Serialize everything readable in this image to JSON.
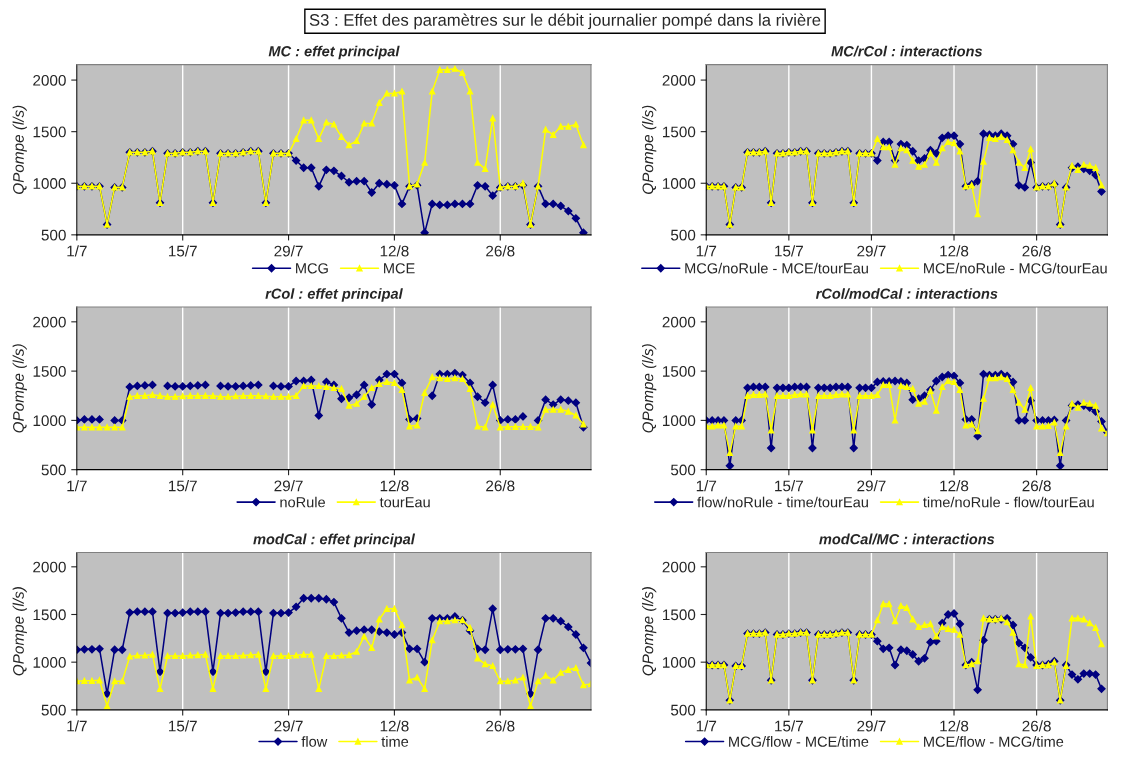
{
  "chart_data": [
    {
      "type": "line",
      "title": "MC : effet principal",
      "ylabel": "QPompe (l/s)",
      "annotations": [
        "S3 : Effet des paramètres sur le débit journalier pompé dans la rivière"
      ],
      "categories": [
        "1/7",
        null,
        null,
        null,
        null,
        null,
        null,
        null,
        null,
        null,
        null,
        null,
        null,
        null,
        "15/7",
        null,
        null,
        null,
        null,
        null,
        null,
        null,
        null,
        null,
        null,
        null,
        null,
        null,
        "29/7",
        null,
        null,
        null,
        null,
        null,
        null,
        null,
        null,
        null,
        null,
        null,
        null,
        null,
        "12/8",
        null,
        null,
        null,
        null,
        null,
        null,
        null,
        null,
        null,
        null,
        null,
        null,
        null,
        "26/8",
        null,
        null,
        null,
        null,
        null,
        null,
        null,
        null,
        null,
        null,
        null,
        null
      ],
      "ylim": [
        500,
        2150
      ],
      "yticks": [
        500,
        1000,
        1500,
        2000
      ],
      "grid": "x",
      "legend": "bottom",
      "series": [
        {
          "name": "MCG",
          "color": "#000080",
          "marker": "diamond",
          "values": [
            970,
            970,
            970,
            970,
            600,
            960,
            960,
            1300,
            1300,
            1300,
            1310,
            810,
            1290,
            1290,
            1300,
            1300,
            1310,
            1310,
            810,
            1290,
            1290,
            1290,
            1300,
            1310,
            1310,
            810,
            1290,
            1290,
            1290,
            1220,
            1150,
            1150,
            970,
            1130,
            1120,
            1070,
            1010,
            1020,
            1020,
            910,
            1000,
            990,
            980,
            800,
            970,
            980,
            520,
            800,
            790,
            790,
            800,
            800,
            800,
            980,
            970,
            880,
            960,
            970,
            970,
            980,
            600,
            970,
            800,
            800,
            780,
            730,
            660,
            520,
            null
          ]
        },
        {
          "name": "MCE",
          "color": "#ffff00",
          "marker": "triangle",
          "values": [
            970,
            970,
            970,
            970,
            600,
            960,
            960,
            1300,
            1300,
            1300,
            1310,
            810,
            1290,
            1290,
            1300,
            1300,
            1310,
            1310,
            810,
            1290,
            1290,
            1290,
            1300,
            1310,
            1310,
            810,
            1290,
            1290,
            1290,
            1430,
            1610,
            1610,
            1430,
            1590,
            1570,
            1450,
            1370,
            1410,
            1580,
            1580,
            1780,
            1870,
            1870,
            1890,
            970,
            990,
            1200,
            1890,
            2100,
            2100,
            2110,
            2070,
            1890,
            1200,
            1140,
            1630,
            960,
            970,
            970,
            1000,
            600,
            970,
            1520,
            1470,
            1550,
            1550,
            1570,
            1370,
            null
          ]
        }
      ]
    },
    {
      "type": "line",
      "title": "MC/rCol : interactions",
      "ylabel": "QPompe (l/s)",
      "categories": [
        "1/7",
        null,
        null,
        null,
        null,
        null,
        null,
        null,
        null,
        null,
        null,
        null,
        null,
        null,
        "15/7",
        null,
        null,
        null,
        null,
        null,
        null,
        null,
        null,
        null,
        null,
        null,
        null,
        null,
        "29/7",
        null,
        null,
        null,
        null,
        null,
        null,
        null,
        null,
        null,
        null,
        null,
        null,
        null,
        "12/8",
        null,
        null,
        null,
        null,
        null,
        null,
        null,
        null,
        null,
        null,
        null,
        null,
        null,
        "26/8",
        null,
        null,
        null,
        null,
        null,
        null,
        null,
        null,
        null,
        null,
        null,
        null
      ],
      "ylim": [
        500,
        2150
      ],
      "yticks": [
        500,
        1000,
        1500,
        2000
      ],
      "grid": "x",
      "legend": "bottom",
      "series": [
        {
          "name": "MCG/noRule - MCE/tourEau",
          "color": "#000080",
          "marker": "diamond",
          "values": [
            970,
            970,
            970,
            970,
            600,
            960,
            960,
            1300,
            1300,
            1300,
            1310,
            810,
            1290,
            1290,
            1300,
            1300,
            1310,
            1310,
            810,
            1290,
            1290,
            1290,
            1300,
            1310,
            1310,
            810,
            1290,
            1290,
            1290,
            1220,
            1400,
            1400,
            1220,
            1380,
            1370,
            1310,
            1220,
            1240,
            1320,
            1290,
            1440,
            1460,
            1460,
            1380,
            970,
            990,
            1020,
            1480,
            1470,
            1460,
            1480,
            1460,
            1380,
            980,
            960,
            1200,
            960,
            970,
            970,
            990,
            600,
            960,
            1150,
            1160,
            1140,
            1120,
            1080,
            920,
            null
          ]
        },
        {
          "name": "MCE/noRule - MCG/tourEau",
          "color": "#ffff00",
          "marker": "triangle",
          "values": [
            970,
            970,
            970,
            970,
            600,
            960,
            960,
            1300,
            1300,
            1300,
            1310,
            810,
            1290,
            1290,
            1300,
            1300,
            1310,
            1310,
            810,
            1290,
            1290,
            1290,
            1300,
            1310,
            1310,
            810,
            1290,
            1290,
            1290,
            1430,
            1350,
            1350,
            1180,
            1340,
            1320,
            1220,
            1160,
            1180,
            1290,
            1200,
            1340,
            1400,
            1390,
            1310,
            970,
            980,
            700,
            1210,
            1440,
            1430,
            1450,
            1420,
            1320,
            1200,
            1150,
            1330,
            960,
            970,
            970,
            1000,
            600,
            960,
            1170,
            1130,
            1180,
            1170,
            1150,
            980,
            null
          ]
        }
      ]
    },
    {
      "type": "line",
      "title": "rCol : effet principal",
      "ylabel": "QPompe (l/s)",
      "categories": [
        "1/7",
        null,
        null,
        null,
        null,
        null,
        null,
        null,
        null,
        null,
        null,
        null,
        null,
        null,
        "15/7",
        null,
        null,
        null,
        null,
        null,
        null,
        null,
        null,
        null,
        null,
        null,
        null,
        null,
        "29/7",
        null,
        null,
        null,
        null,
        null,
        null,
        null,
        null,
        null,
        null,
        null,
        null,
        null,
        "12/8",
        null,
        null,
        null,
        null,
        null,
        null,
        null,
        null,
        null,
        null,
        null,
        null,
        null,
        "26/8",
        null,
        null,
        null,
        null,
        null,
        null,
        null,
        null,
        null,
        null,
        null,
        null
      ],
      "ylim": [
        500,
        2150
      ],
      "yticks": [
        500,
        1000,
        1500,
        2000
      ],
      "grid": "x",
      "legend": "bottom",
      "series": [
        {
          "name": "noRule",
          "color": "#000080",
          "marker": "diamond",
          "values": [
            1000,
            1010,
            1010,
            1010,
            null,
            1000,
            1000,
            1340,
            1350,
            1355,
            1360,
            null,
            1350,
            1345,
            1345,
            1350,
            1355,
            1360,
            null,
            1350,
            1345,
            1345,
            1350,
            1355,
            1360,
            null,
            1350,
            1345,
            1345,
            1400,
            1400,
            1410,
            1050,
            1390,
            1360,
            1220,
            1230,
            1260,
            1360,
            1160,
            1410,
            1470,
            1470,
            1380,
            1010,
            1020,
            null,
            1250,
            1470,
            1470,
            1480,
            1460,
            1380,
            1240,
            1180,
            1360,
            1000,
            1010,
            1010,
            1040,
            null,
            1000,
            1210,
            1160,
            1210,
            1200,
            1180,
            930,
            null
          ]
        },
        {
          "name": "tourEau",
          "color": "#ffff00",
          "marker": "triangle",
          "values": [
            930,
            930,
            930,
            930,
            930,
            930,
            930,
            1240,
            1250,
            1250,
            1260,
            1250,
            1240,
            1240,
            1245,
            1250,
            1250,
            1250,
            1250,
            1240,
            1240,
            1245,
            1250,
            1250,
            1250,
            1245,
            1240,
            1240,
            1240,
            1250,
            1350,
            1350,
            1350,
            1340,
            1330,
            1320,
            1150,
            1170,
            1240,
            1330,
            1370,
            1390,
            1380,
            1310,
            940,
            950,
            1280,
            1440,
            1430,
            1420,
            1430,
            1420,
            1320,
            940,
            930,
            1160,
            930,
            935,
            935,
            935,
            935,
            930,
            1110,
            1110,
            1110,
            1090,
            1050,
            960,
            null
          ]
        }
      ]
    },
    {
      "type": "line",
      "title": "rCol/modCal : interactions",
      "ylabel": "QPompe (l/s)",
      "categories": [
        "1/7",
        null,
        null,
        null,
        null,
        null,
        null,
        null,
        null,
        null,
        null,
        null,
        null,
        null,
        "15/7",
        null,
        null,
        null,
        null,
        null,
        null,
        null,
        null,
        null,
        null,
        null,
        null,
        null,
        "29/7",
        null,
        null,
        null,
        null,
        null,
        null,
        null,
        null,
        null,
        null,
        null,
        null,
        null,
        "12/8",
        null,
        null,
        null,
        null,
        null,
        null,
        null,
        null,
        null,
        null,
        null,
        null,
        null,
        "26/8",
        null,
        null,
        null,
        null,
        null,
        null,
        null,
        null,
        null,
        null,
        null,
        null
      ],
      "ylim": [
        500,
        2150
      ],
      "yticks": [
        500,
        1000,
        1500,
        2000
      ],
      "grid": "x",
      "legend": "bottom",
      "series": [
        {
          "name": "flow/noRule - time/tourEau",
          "color": "#000080",
          "marker": "diamond",
          "values": [
            1000,
            1000,
            1000,
            1000,
            540,
            1000,
            1000,
            1330,
            1340,
            1340,
            1340,
            720,
            1330,
            1330,
            1330,
            1340,
            1340,
            1340,
            720,
            1330,
            1330,
            1330,
            1340,
            1340,
            1340,
            720,
            1330,
            1330,
            1330,
            1390,
            1395,
            1395,
            1400,
            1395,
            1380,
            1210,
            1220,
            1250,
            1310,
            1400,
            1440,
            1460,
            1450,
            1380,
            1010,
            1010,
            840,
            1470,
            1460,
            1460,
            1470,
            1450,
            1390,
            1000,
            1000,
            1200,
            1000,
            1000,
            1000,
            1005,
            540,
            1000,
            1150,
            1160,
            1150,
            1130,
            1090,
            990,
            880
          ]
        },
        {
          "name": "time/noRule - flow/tourEau",
          "color": "#ffff00",
          "marker": "triangle",
          "values": [
            940,
            940,
            950,
            950,
            670,
            940,
            940,
            1250,
            1260,
            1260,
            1265,
            900,
            1250,
            1250,
            1250,
            1260,
            1265,
            1265,
            900,
            1250,
            1250,
            1250,
            1260,
            1265,
            1265,
            900,
            1250,
            1250,
            1250,
            1260,
            1360,
            1360,
            1000,
            1350,
            1340,
            1320,
            1170,
            1190,
            1300,
            1100,
            1340,
            1400,
            1390,
            1310,
            950,
            960,
            890,
            1220,
            1430,
            1430,
            1440,
            1420,
            1310,
            1180,
            1110,
            1330,
            940,
            940,
            945,
            980,
            670,
            940,
            1170,
            1130,
            1180,
            1170,
            1150,
            920,
            870
          ]
        }
      ]
    },
    {
      "type": "line",
      "title": "modCal : effet principal",
      "ylabel": "QPompe (l/s)",
      "categories": [
        "1/7",
        null,
        null,
        null,
        null,
        null,
        null,
        null,
        null,
        null,
        null,
        null,
        null,
        null,
        "15/7",
        null,
        null,
        null,
        null,
        null,
        null,
        null,
        null,
        null,
        null,
        null,
        null,
        null,
        "29/7",
        null,
        null,
        null,
        null,
        null,
        null,
        null,
        null,
        null,
        null,
        null,
        null,
        null,
        "12/8",
        null,
        null,
        null,
        null,
        null,
        null,
        null,
        null,
        null,
        null,
        null,
        null,
        null,
        "26/8",
        null,
        null,
        null,
        null,
        null,
        null,
        null,
        null,
        null,
        null,
        null,
        null
      ],
      "ylim": [
        500,
        2150
      ],
      "yticks": [
        500,
        1000,
        1500,
        2000
      ],
      "grid": "x",
      "legend": "bottom",
      "series": [
        {
          "name": "flow",
          "color": "#000080",
          "marker": "diamond",
          "values": [
            1130,
            1135,
            1135,
            1140,
            670,
            1130,
            1130,
            1520,
            1530,
            1530,
            1530,
            900,
            1515,
            1515,
            1520,
            1530,
            1530,
            1530,
            900,
            1515,
            1515,
            1520,
            1530,
            1530,
            1530,
            900,
            1515,
            1515,
            1520,
            1580,
            1670,
            1670,
            1670,
            1660,
            1630,
            1460,
            1310,
            1330,
            1340,
            1340,
            1320,
            1310,
            1290,
            1310,
            1140,
            1140,
            1000,
            1460,
            1460,
            1460,
            1480,
            1440,
            1330,
            1140,
            1130,
            1560,
            1130,
            1135,
            1135,
            1140,
            670,
            1130,
            1460,
            1460,
            1430,
            1370,
            1290,
            1150,
            990
          ]
        },
        {
          "name": "time",
          "color": "#ffff00",
          "marker": "triangle",
          "values": [
            800,
            805,
            805,
            810,
            540,
            800,
            800,
            1060,
            1070,
            1070,
            1080,
            720,
            1065,
            1065,
            1065,
            1070,
            1075,
            1080,
            720,
            1065,
            1065,
            1065,
            1070,
            1075,
            1080,
            720,
            1065,
            1065,
            1065,
            1070,
            1080,
            1080,
            720,
            1065,
            1065,
            1070,
            1075,
            1110,
            1270,
            1150,
            1450,
            1560,
            1560,
            1390,
            810,
            840,
            720,
            1230,
            1430,
            1430,
            1440,
            1440,
            1360,
            1040,
            980,
            960,
            800,
            800,
            810,
            840,
            540,
            800,
            860,
            810,
            890,
            920,
            940,
            760,
            770
          ]
        }
      ]
    },
    {
      "type": "line",
      "title": "modCal/MC : interactions",
      "ylabel": "QPompe (l/s)",
      "categories": [
        "1/7",
        null,
        null,
        null,
        null,
        null,
        null,
        null,
        null,
        null,
        null,
        null,
        null,
        null,
        "15/7",
        null,
        null,
        null,
        null,
        null,
        null,
        null,
        null,
        null,
        null,
        null,
        null,
        null,
        "29/7",
        null,
        null,
        null,
        null,
        null,
        null,
        null,
        null,
        null,
        null,
        null,
        null,
        null,
        "12/8",
        null,
        null,
        null,
        null,
        null,
        null,
        null,
        null,
        null,
        null,
        null,
        null,
        null,
        "26/8",
        null,
        null,
        null,
        null,
        null,
        null,
        null,
        null,
        null,
        null,
        null,
        null
      ],
      "ylim": [
        500,
        2150
      ],
      "yticks": [
        500,
        1000,
        1500,
        2000
      ],
      "grid": "x",
      "legend": "bottom",
      "series": [
        {
          "name": "MCG/flow - MCE/time",
          "color": "#000080",
          "marker": "diamond",
          "values": [
            970,
            970,
            970,
            970,
            600,
            960,
            960,
            1300,
            1300,
            1300,
            1310,
            810,
            1290,
            1290,
            1300,
            1300,
            1310,
            1310,
            810,
            1290,
            1290,
            1290,
            1300,
            1310,
            1310,
            810,
            1290,
            1290,
            1290,
            1220,
            1140,
            1150,
            970,
            1130,
            1120,
            1080,
            1010,
            1040,
            1210,
            1220,
            1410,
            1500,
            1510,
            1400,
            970,
            1000,
            710,
            1230,
            1450,
            1450,
            1450,
            1460,
            1390,
            1200,
            1150,
            1050,
            970,
            970,
            980,
            1010,
            600,
            970,
            870,
            820,
            880,
            880,
            870,
            720,
            null
          ]
        },
        {
          "name": "MCE/flow - MCG/time",
          "color": "#ffff00",
          "marker": "triangle",
          "values": [
            970,
            970,
            970,
            970,
            600,
            960,
            960,
            1300,
            1300,
            1300,
            1310,
            810,
            1290,
            1290,
            1300,
            1300,
            1310,
            1310,
            810,
            1290,
            1290,
            1290,
            1300,
            1310,
            1310,
            810,
            1290,
            1290,
            1290,
            1440,
            1610,
            1610,
            1430,
            1590,
            1570,
            1450,
            1370,
            1390,
            1400,
            1270,
            1370,
            1350,
            1340,
            1290,
            970,
            980,
            1010,
            1460,
            1450,
            1450,
            1460,
            1420,
            1310,
            980,
            970,
            1480,
            960,
            970,
            970,
            1000,
            600,
            960,
            1460,
            1460,
            1450,
            1410,
            1360,
            1190,
            null
          ]
        }
      ]
    }
  ]
}
